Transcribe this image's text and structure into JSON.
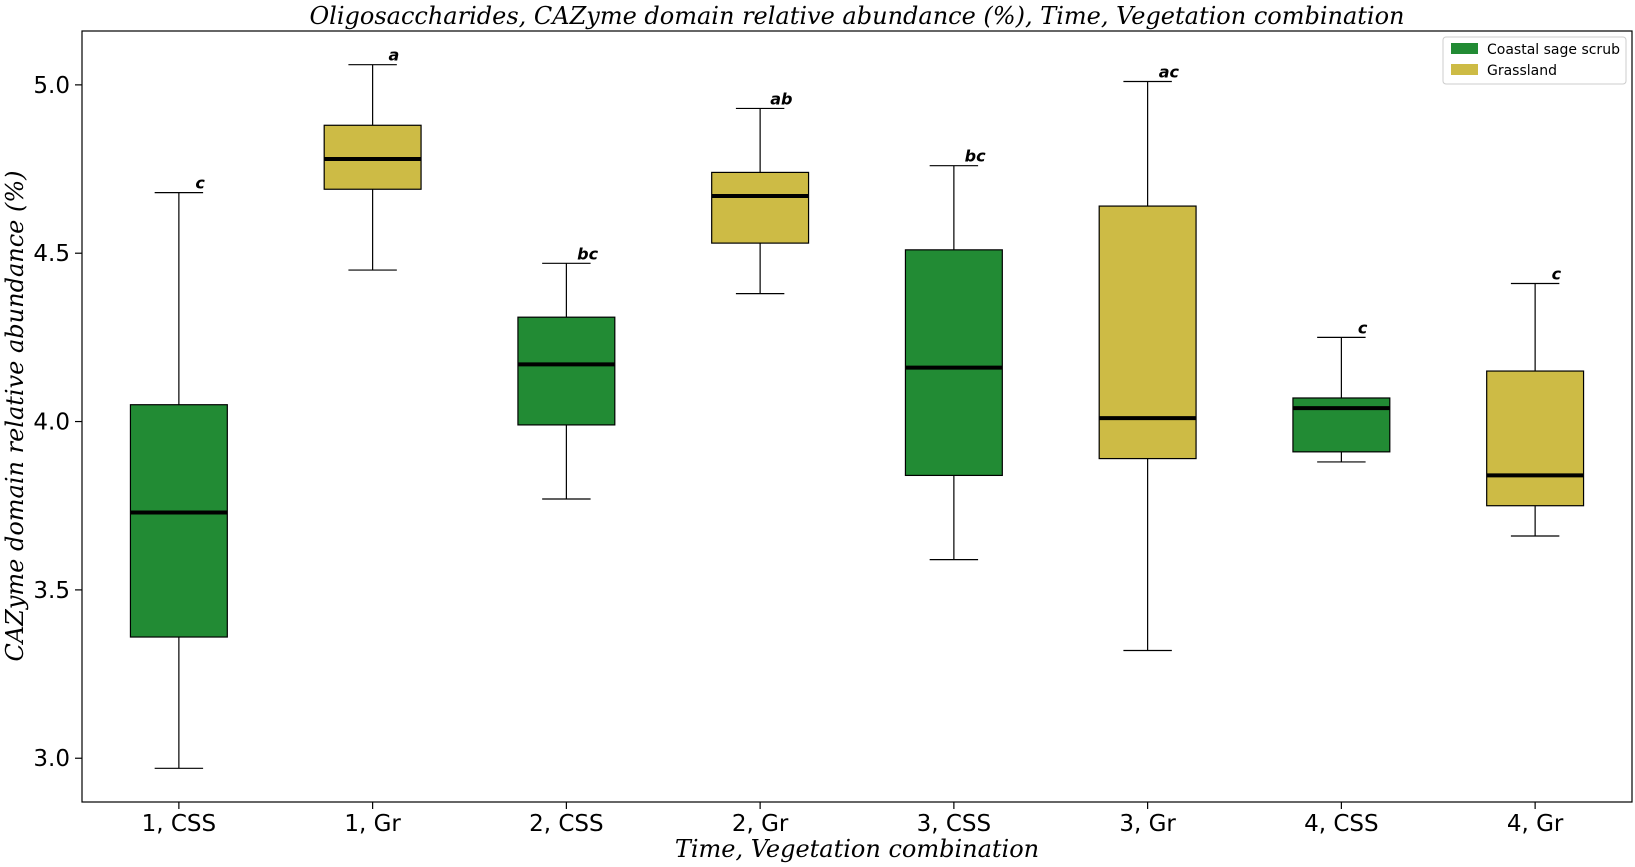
{
  "chart_data": {
    "type": "box",
    "title": "Oligosaccharides, CAZyme domain relative abundance (%), Time, Vegetation combination",
    "xlabel": "Time, Vegetation combination",
    "ylabel": "CAZyme domain relative abundance (%)",
    "ylim": [
      2.87,
      5.16
    ],
    "yticks": [
      "3.0",
      "3.5",
      "4.0",
      "4.5",
      "5.0"
    ],
    "ytick_values": [
      3.0,
      3.5,
      4.0,
      4.5,
      5.0
    ],
    "legend": {
      "position": "top-right",
      "entries": [
        {
          "label": "Coastal sage scrub",
          "color": "#228b34"
        },
        {
          "label": "Grassland",
          "color": "#cdbb45"
        }
      ]
    },
    "groups": [
      {
        "label": "1, CSS",
        "vegetation": "Coastal sage scrub",
        "color": "#228b34",
        "whisker_low": 2.97,
        "q1": 3.36,
        "median": 3.73,
        "q3": 4.05,
        "whisker_high": 4.68,
        "sig": "c"
      },
      {
        "label": "1, Gr",
        "vegetation": "Grassland",
        "color": "#cdbb45",
        "whisker_low": 4.45,
        "q1": 4.69,
        "median": 4.78,
        "q3": 4.88,
        "whisker_high": 5.06,
        "sig": "a"
      },
      {
        "label": "2, CSS",
        "vegetation": "Coastal sage scrub",
        "color": "#228b34",
        "whisker_low": 3.77,
        "q1": 3.99,
        "median": 4.17,
        "q3": 4.31,
        "whisker_high": 4.47,
        "sig": "bc"
      },
      {
        "label": "2, Gr",
        "vegetation": "Grassland",
        "color": "#cdbb45",
        "whisker_low": 4.38,
        "q1": 4.53,
        "median": 4.67,
        "q3": 4.74,
        "whisker_high": 4.93,
        "sig": "ab"
      },
      {
        "label": "3, CSS",
        "vegetation": "Coastal sage scrub",
        "color": "#228b34",
        "whisker_low": 3.59,
        "q1": 3.84,
        "median": 4.16,
        "q3": 4.51,
        "whisker_high": 4.76,
        "sig": "bc"
      },
      {
        "label": "3, Gr",
        "vegetation": "Grassland",
        "color": "#cdbb45",
        "whisker_low": 3.32,
        "q1": 3.89,
        "median": 4.01,
        "q3": 4.64,
        "whisker_high": 5.01,
        "sig": "ac"
      },
      {
        "label": "4, CSS",
        "vegetation": "Coastal sage scrub",
        "color": "#228b34",
        "whisker_low": 3.88,
        "q1": 3.91,
        "median": 4.04,
        "q3": 4.07,
        "whisker_high": 4.25,
        "sig": "c"
      },
      {
        "label": "4, Gr",
        "vegetation": "Grassland",
        "color": "#cdbb45",
        "whisker_low": 3.66,
        "q1": 3.75,
        "median": 3.84,
        "q3": 4.15,
        "whisker_high": 4.41,
        "sig": "c"
      }
    ]
  }
}
